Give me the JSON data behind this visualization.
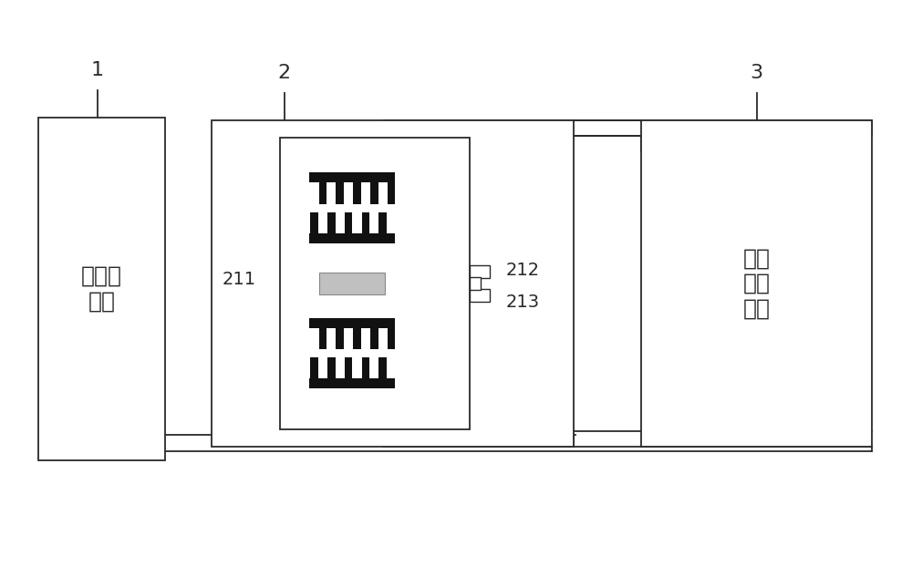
{
  "bg_color": "#ffffff",
  "line_color": "#2a2a2a",
  "label1": "1",
  "label2": "2",
  "label3": "3",
  "label211": "211",
  "label212": "212",
  "label213": "213",
  "text_wenkon": "温控子\n系统",
  "text_drive": "驱动\n检测\n电路",
  "dark_color": "#111111",
  "gray_color": "#c0c0c0",
  "font_size_label": 16,
  "font_size_text": 18,
  "font_size_num": 14
}
